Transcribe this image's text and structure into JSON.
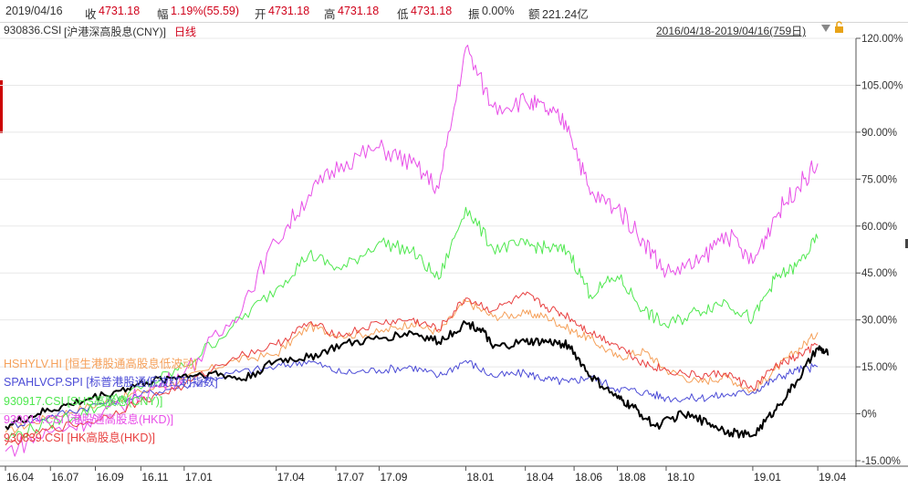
{
  "quote": {
    "date": "2019/04/16",
    "close_label": "收",
    "close_value": "4731.18",
    "change_label": "幅",
    "change_value": "1.19%(55.59)",
    "open_label": "开",
    "open_value": "4731.18",
    "high_label": "高",
    "high_value": "4731.18",
    "low_label": "低",
    "low_value": "4731.18",
    "amp_label": "振",
    "amp_value": "0.00%",
    "amount_label": "额",
    "amount_value": "221.24亿"
  },
  "instrument": {
    "code": "930836.CSI",
    "name": "[沪港深高股息(CNY)]",
    "period": "日线"
  },
  "range": "2016/04/18-2019/04/16(759日)",
  "colors": {
    "orange": "#f5a05a",
    "blue": "#4b4bd6",
    "green": "#4fe84f",
    "magenta": "#e84fe8",
    "red": "#e84040",
    "black": "#000000",
    "axis": "#555555",
    "grid": "#e8e8e8"
  },
  "chart_data": {
    "type": "line",
    "ylim": [
      -15,
      120
    ],
    "y_ticks": [
      "120.00%",
      "105.00%",
      "90.00%",
      "75.00%",
      "60.00%",
      "45.00%",
      "30.00%",
      "15.00%",
      "0%",
      "-15.00%"
    ],
    "y_tick_values": [
      120,
      105,
      90,
      75,
      60,
      45,
      30,
      15,
      0,
      -15
    ],
    "x_ticks": [
      "16.04",
      "16.07",
      "16.09",
      "16.11",
      "17.01",
      "17.04",
      "17.07",
      "17.09",
      "18.01",
      "18.04",
      "18.06",
      "18.08",
      "18.10",
      "19.01",
      "19.04"
    ],
    "x_tick_index": [
      0,
      0.083,
      0.166,
      0.25,
      0.33,
      0.5,
      0.61,
      0.69,
      0.85,
      0.96,
      1.05,
      1.13,
      1.22,
      1.38,
      1.5
    ],
    "series": [
      {
        "name": "HSHYLV.HI [恒生港股通高股息低波动]",
        "color": "#f5a05a",
        "values": [
          [
            0,
            -6
          ],
          [
            0.08,
            -1
          ],
          [
            0.17,
            3
          ],
          [
            0.25,
            7
          ],
          [
            0.33,
            11
          ],
          [
            0.42,
            17
          ],
          [
            0.5,
            19
          ],
          [
            0.56,
            28
          ],
          [
            0.62,
            25
          ],
          [
            0.69,
            26
          ],
          [
            0.75,
            29
          ],
          [
            0.8,
            26
          ],
          [
            0.85,
            36
          ],
          [
            0.9,
            31
          ],
          [
            0.96,
            32
          ],
          [
            1.0,
            31
          ],
          [
            1.04,
            27
          ],
          [
            1.08,
            24
          ],
          [
            1.13,
            18
          ],
          [
            1.18,
            20
          ],
          [
            1.22,
            14
          ],
          [
            1.28,
            10
          ],
          [
            1.33,
            12
          ],
          [
            1.38,
            7
          ],
          [
            1.42,
            14
          ],
          [
            1.46,
            20
          ],
          [
            1.5,
            26
          ]
        ]
      },
      {
        "name": "SPAHLVCP.SPI [标普港股通低波红利指数]",
        "color": "#4b4bd6",
        "values": [
          [
            0,
            -4
          ],
          [
            0.08,
            -1
          ],
          [
            0.17,
            3
          ],
          [
            0.25,
            6
          ],
          [
            0.33,
            9
          ],
          [
            0.42,
            13
          ],
          [
            0.5,
            15
          ],
          [
            0.56,
            17
          ],
          [
            0.62,
            13
          ],
          [
            0.69,
            14
          ],
          [
            0.75,
            15
          ],
          [
            0.8,
            12
          ],
          [
            0.85,
            17
          ],
          [
            0.9,
            12
          ],
          [
            0.96,
            13
          ],
          [
            1.0,
            11
          ],
          [
            1.04,
            10
          ],
          [
            1.08,
            12
          ],
          [
            1.13,
            8
          ],
          [
            1.18,
            7
          ],
          [
            1.22,
            5
          ],
          [
            1.28,
            5
          ],
          [
            1.33,
            6
          ],
          [
            1.38,
            7
          ],
          [
            1.42,
            11
          ],
          [
            1.46,
            14
          ],
          [
            1.5,
            15
          ]
        ]
      },
      {
        "name": "930917.CSI [SHS高股息(CNY)]",
        "color": "#4fe84f",
        "values": [
          [
            0,
            -8
          ],
          [
            0.08,
            -3
          ],
          [
            0.17,
            2
          ],
          [
            0.25,
            8
          ],
          [
            0.33,
            15
          ],
          [
            0.42,
            28
          ],
          [
            0.5,
            40
          ],
          [
            0.56,
            51
          ],
          [
            0.62,
            46
          ],
          [
            0.69,
            55
          ],
          [
            0.75,
            52
          ],
          [
            0.8,
            43
          ],
          [
            0.85,
            66
          ],
          [
            0.9,
            53
          ],
          [
            0.96,
            54
          ],
          [
            1.0,
            53
          ],
          [
            1.04,
            52
          ],
          [
            1.08,
            38
          ],
          [
            1.13,
            44
          ],
          [
            1.18,
            33
          ],
          [
            1.22,
            28
          ],
          [
            1.28,
            33
          ],
          [
            1.33,
            36
          ],
          [
            1.38,
            30
          ],
          [
            1.42,
            43
          ],
          [
            1.46,
            47
          ],
          [
            1.5,
            56
          ]
        ]
      },
      {
        "name": "930914.CSI [港股通高股息(HKD)]",
        "color": "#e84fe8",
        "values": [
          [
            0,
            -12
          ],
          [
            0.08,
            -6
          ],
          [
            0.17,
            -1
          ],
          [
            0.25,
            6
          ],
          [
            0.33,
            13
          ],
          [
            0.42,
            30
          ],
          [
            0.5,
            55
          ],
          [
            0.56,
            70
          ],
          [
            0.62,
            80
          ],
          [
            0.69,
            85
          ],
          [
            0.75,
            80
          ],
          [
            0.8,
            72
          ],
          [
            0.85,
            117
          ],
          [
            0.9,
            98
          ],
          [
            0.96,
            100
          ],
          [
            1.0,
            97
          ],
          [
            1.04,
            92
          ],
          [
            1.08,
            70
          ],
          [
            1.13,
            66
          ],
          [
            1.18,
            55
          ],
          [
            1.22,
            45
          ],
          [
            1.28,
            48
          ],
          [
            1.33,
            58
          ],
          [
            1.38,
            48
          ],
          [
            1.42,
            63
          ],
          [
            1.46,
            72
          ],
          [
            1.5,
            80
          ]
        ]
      },
      {
        "name": "930839.CSI [HK高股息(HKD)]",
        "color": "#e84040",
        "values": [
          [
            0,
            -10
          ],
          [
            0.08,
            -5
          ],
          [
            0.17,
            -2
          ],
          [
            0.25,
            4
          ],
          [
            0.33,
            9
          ],
          [
            0.42,
            18
          ],
          [
            0.5,
            22
          ],
          [
            0.56,
            29
          ],
          [
            0.62,
            25
          ],
          [
            0.69,
            29
          ],
          [
            0.75,
            30
          ],
          [
            0.8,
            27
          ],
          [
            0.85,
            37
          ],
          [
            0.9,
            33
          ],
          [
            0.96,
            38
          ],
          [
            1.0,
            34
          ],
          [
            1.04,
            31
          ],
          [
            1.08,
            26
          ],
          [
            1.13,
            22
          ],
          [
            1.18,
            16
          ],
          [
            1.22,
            14
          ],
          [
            1.28,
            12
          ],
          [
            1.33,
            13
          ],
          [
            1.38,
            8
          ],
          [
            1.42,
            15
          ],
          [
            1.46,
            18
          ],
          [
            1.5,
            22
          ]
        ]
      },
      {
        "name": "930836.CSI [沪港深高股息(CNY)]",
        "color": "#000000",
        "values": [
          [
            0,
            -4
          ],
          [
            0.06,
            0
          ],
          [
            0.12,
            3
          ],
          [
            0.2,
            7
          ],
          [
            0.26,
            10
          ],
          [
            0.32,
            12
          ],
          [
            0.38,
            13
          ],
          [
            0.44,
            11
          ],
          [
            0.5,
            17
          ],
          [
            0.56,
            18
          ],
          [
            0.62,
            22
          ],
          [
            0.69,
            24
          ],
          [
            0.75,
            26
          ],
          [
            0.8,
            23
          ],
          [
            0.85,
            29
          ],
          [
            0.88,
            27
          ],
          [
            0.9,
            21
          ],
          [
            0.96,
            23
          ],
          [
            1.0,
            23
          ],
          [
            1.04,
            22
          ],
          [
            1.08,
            12
          ],
          [
            1.13,
            5
          ],
          [
            1.16,
            2
          ],
          [
            1.2,
            -4
          ],
          [
            1.25,
            0
          ],
          [
            1.3,
            -3
          ],
          [
            1.34,
            -6
          ],
          [
            1.38,
            -7
          ],
          [
            1.42,
            1
          ],
          [
            1.46,
            10
          ],
          [
            1.5,
            21
          ],
          [
            1.52,
            19
          ]
        ]
      }
    ]
  }
}
